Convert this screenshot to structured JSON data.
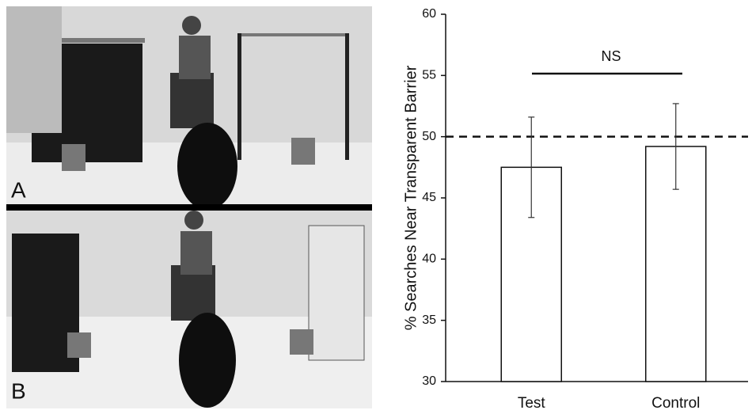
{
  "panels": [
    "A",
    "B"
  ],
  "chart_data": {
    "type": "bar",
    "y_label": "% Searches Near Transparent Barrier",
    "categories": [
      "Test",
      "Control"
    ],
    "values": [
      47.5,
      49.2
    ],
    "errors": [
      4.1,
      3.5
    ],
    "color": "#ffffff",
    "ylim": [
      30,
      60
    ],
    "yticks": [
      30,
      35,
      40,
      45,
      50,
      55,
      60
    ],
    "reference_line": 50,
    "annotation": "NS",
    "grid": false
  }
}
